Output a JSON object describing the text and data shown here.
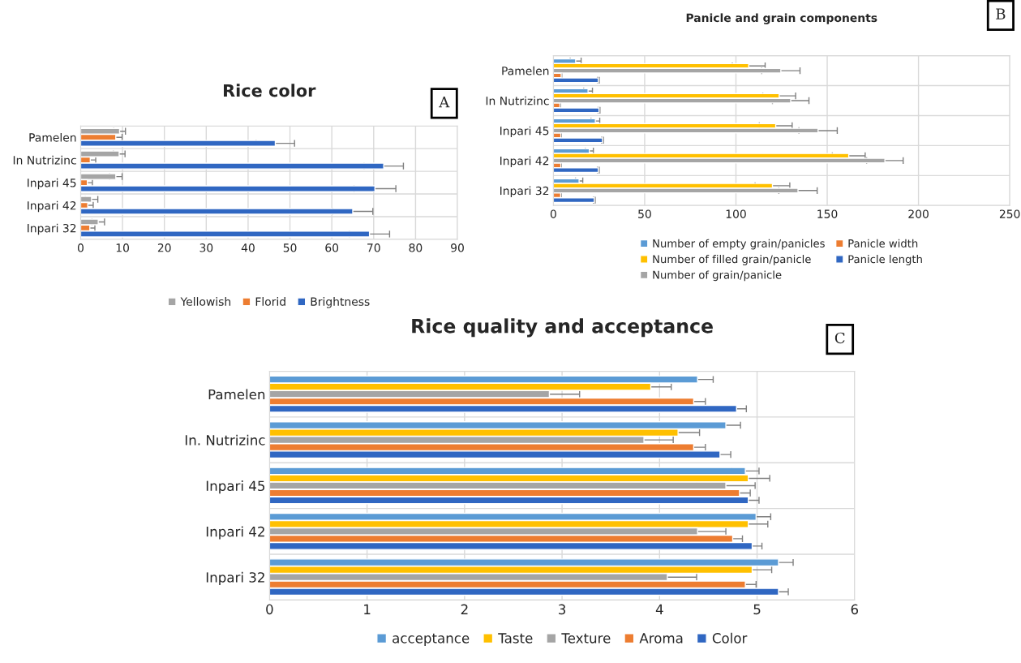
{
  "chart_data": [
    {
      "type": "bar",
      "orientation": "horizontal",
      "title": "Rice color",
      "categories": [
        "Pamelen",
        "In Nutrizinc",
        "Inpari 45",
        "Inpari 42",
        "Inpari 32"
      ],
      "xlim": [
        0,
        90
      ],
      "xticks": [
        0,
        10,
        20,
        30,
        40,
        50,
        60,
        70,
        80,
        90
      ],
      "grid": "x",
      "legend": "bottom",
      "annotations": [
        "A"
      ],
      "series": [
        {
          "name": "Yellowish",
          "color": "#a5a5a5",
          "values": [
            9.3,
            9.2,
            8.4,
            2.6,
            4.2
          ],
          "errors": [
            1.4,
            1.4,
            1.5,
            1.5,
            1.5
          ]
        },
        {
          "name": "Florid",
          "color": "#ed7d31",
          "values": [
            8.4,
            2.3,
            1.6,
            1.7,
            2.2
          ],
          "errors": [
            1.5,
            1.3,
            1.2,
            1.3,
            1.2
          ]
        },
        {
          "name": "Brightness",
          "color": "#3067c2",
          "values": [
            46.5,
            72.4,
            70.3,
            65,
            69
          ],
          "errors": [
            4.6,
            4.7,
            5,
            4.8,
            4.8
          ]
        }
      ]
    },
    {
      "type": "bar",
      "orientation": "horizontal",
      "title": "Panicle and grain components",
      "categories": [
        "Pamelen",
        "In Nutrizinc",
        "Inpari 45",
        "Inpari 42",
        "Inpari 32"
      ],
      "xlim": [
        0,
        250
      ],
      "xticks": [
        0,
        50,
        100,
        150,
        200,
        250
      ],
      "grid": "x",
      "legend": "bottom",
      "annotations": [
        "B"
      ],
      "series": [
        {
          "name": "Number of empty grain/panicles",
          "color": "#5b9bd5",
          "values": [
            12.2,
            19,
            23,
            19.7,
            14.1
          ],
          "errors": [
            3,
            2.4,
            2.4,
            2.2,
            2
          ]
        },
        {
          "name": "Number of filled grain/panicle",
          "color": "#ffc000",
          "values": [
            107,
            123.7,
            121.8,
            161.8,
            120
          ],
          "errors": [
            9,
            9,
            9,
            9,
            9.5
          ]
        },
        {
          "name": "Number of grain/panicle",
          "color": "#a5a5a5",
          "values": [
            124.6,
            130,
            145,
            181.6,
            134
          ],
          "errors": [
            10.5,
            10,
            10.5,
            10,
            10.5
          ]
        },
        {
          "name": "Panicle width",
          "color": "#ed7d31",
          "values": [
            4.3,
            3.6,
            4.1,
            4.1,
            4
          ],
          "errors": [
            0.3,
            0.3,
            0.3,
            0.3,
            0.3
          ]
        },
        {
          "name": "Panicle length",
          "color": "#3067c2",
          "values": [
            24.6,
            25,
            26.9,
            24.6,
            22.4
          ],
          "errors": [
            0.5,
            0.5,
            0.5,
            0.5,
            0.5
          ]
        }
      ]
    },
    {
      "type": "bar",
      "orientation": "horizontal",
      "title": "Rice quality and acceptance",
      "categories": [
        "Pamelen",
        "In. Nutrizinc",
        "Inpari 45",
        "Inpari 42",
        "Inpari 32"
      ],
      "xlim": [
        0,
        6
      ],
      "xticks": [
        0,
        1,
        2,
        3,
        4,
        5,
        6
      ],
      "grid": "x",
      "legend": "bottom",
      "annotations": [
        "C"
      ],
      "series": [
        {
          "name": "acceptance",
          "color": "#5b9bd5",
          "values": [
            4.39,
            4.68,
            4.88,
            4.99,
            5.22
          ],
          "errors": [
            0.16,
            0.15,
            0.14,
            0.15,
            0.15
          ]
        },
        {
          "name": "Taste",
          "color": "#ffc000",
          "values": [
            3.91,
            4.19,
            4.91,
            4.91,
            4.95
          ],
          "errors": [
            0.21,
            0.22,
            0.22,
            0.2,
            0.2
          ]
        },
        {
          "name": "Texture",
          "color": "#a5a5a5",
          "values": [
            2.87,
            3.84,
            4.68,
            4.39,
            4.08
          ],
          "errors": [
            0.31,
            0.3,
            0.3,
            0.29,
            0.3
          ]
        },
        {
          "name": "Aroma",
          "color": "#ed7d31",
          "values": [
            4.35,
            4.35,
            4.82,
            4.75,
            4.88
          ],
          "errors": [
            0.12,
            0.12,
            0.11,
            0.1,
            0.11
          ]
        },
        {
          "name": "Color",
          "color": "#3067c2",
          "values": [
            4.79,
            4.62,
            4.91,
            4.95,
            5.22
          ],
          "errors": [
            0.1,
            0.11,
            0.11,
            0.1,
            0.1
          ]
        }
      ]
    }
  ]
}
